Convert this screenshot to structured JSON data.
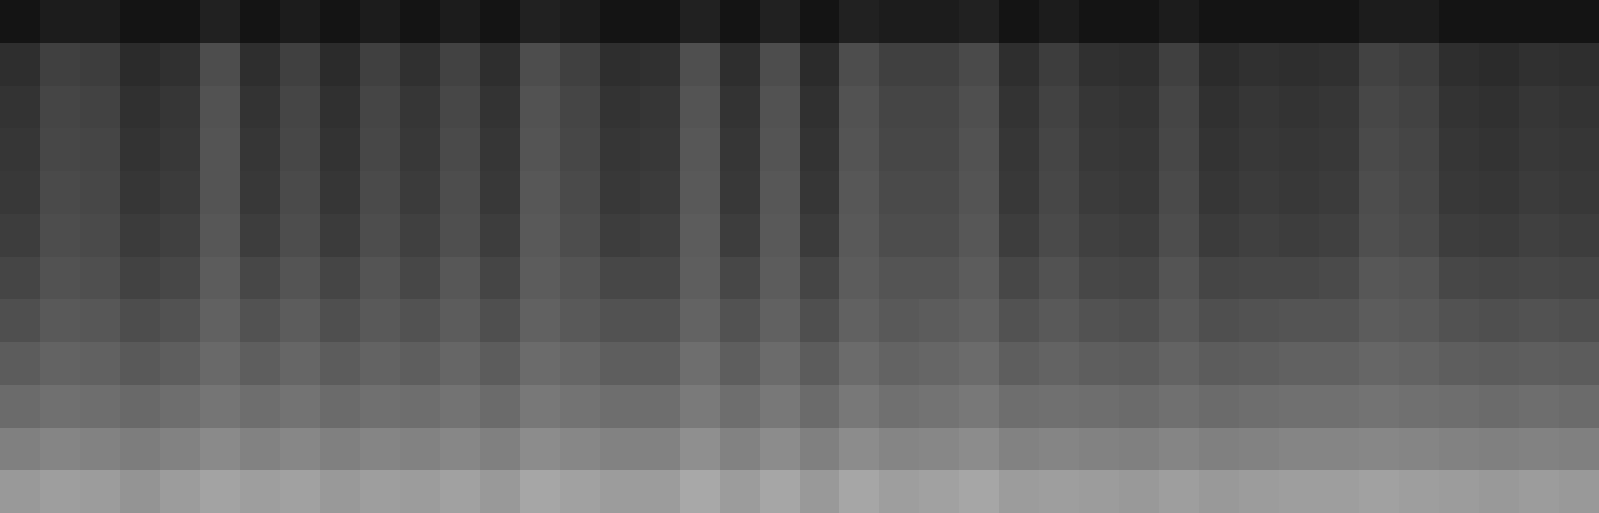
{
  "chart_data": {
    "type": "heatmap",
    "tick_labels": false,
    "zlim": [
      0,
      100
    ],
    "cells": [
      [
        8,
        11,
        11,
        8,
        8,
        13,
        8,
        11,
        8,
        11,
        8,
        11,
        8,
        13,
        11,
        8,
        8,
        13,
        8,
        13,
        8,
        13,
        11,
        11,
        13,
        8,
        11,
        8,
        8,
        11,
        8,
        8,
        8,
        8,
        11,
        11,
        8,
        8,
        8,
        8
      ],
      [
        18,
        25,
        24,
        17,
        19,
        30,
        18,
        25,
        17,
        25,
        19,
        26,
        18,
        30,
        25,
        18,
        19,
        31,
        18,
        30,
        17,
        30,
        25,
        25,
        29,
        18,
        24,
        19,
        18,
        25,
        17,
        19,
        18,
        19,
        26,
        24,
        18,
        17,
        19,
        18
      ],
      [
        20,
        27,
        26,
        19,
        21,
        32,
        20,
        27,
        19,
        27,
        21,
        28,
        20,
        32,
        27,
        20,
        21,
        33,
        20,
        32,
        19,
        32,
        27,
        27,
        31,
        20,
        26,
        21,
        20,
        27,
        19,
        21,
        20,
        21,
        28,
        26,
        20,
        19,
        21,
        20
      ],
      [
        21,
        28,
        27,
        20,
        22,
        33,
        21,
        28,
        20,
        28,
        22,
        29,
        21,
        33,
        28,
        21,
        22,
        34,
        21,
        33,
        20,
        33,
        28,
        28,
        32,
        21,
        27,
        22,
        21,
        28,
        20,
        22,
        21,
        22,
        29,
        27,
        21,
        20,
        22,
        21
      ],
      [
        22,
        29,
        28,
        21,
        23,
        33,
        22,
        29,
        21,
        29,
        23,
        30,
        22,
        34,
        29,
        22,
        23,
        35,
        22,
        34,
        21,
        34,
        29,
        29,
        33,
        22,
        28,
        23,
        22,
        29,
        21,
        23,
        22,
        23,
        30,
        28,
        22,
        21,
        23,
        22
      ],
      [
        24,
        30,
        29,
        23,
        25,
        34,
        24,
        30,
        23,
        30,
        25,
        31,
        24,
        35,
        30,
        24,
        25,
        36,
        24,
        35,
        23,
        35,
        30,
        30,
        34,
        24,
        29,
        25,
        24,
        30,
        23,
        25,
        24,
        25,
        31,
        29,
        24,
        23,
        25,
        24
      ],
      [
        27,
        32,
        31,
        26,
        28,
        36,
        28,
        33,
        27,
        33,
        28,
        34,
        27,
        36,
        33,
        28,
        28,
        37,
        28,
        36,
        27,
        36,
        33,
        33,
        36,
        28,
        32,
        28,
        27,
        33,
        27,
        28,
        28,
        29,
        34,
        33,
        28,
        27,
        28,
        27
      ],
      [
        31,
        35,
        34,
        30,
        32,
        38,
        32,
        36,
        31,
        35,
        32,
        36,
        31,
        38,
        35,
        32,
        32,
        39,
        32,
        38,
        31,
        38,
        35,
        36,
        38,
        32,
        35,
        32,
        31,
        35,
        31,
        32,
        33,
        33,
        36,
        35,
        32,
        31,
        32,
        31
      ],
      [
        36,
        39,
        38,
        35,
        37,
        41,
        37,
        40,
        36,
        39,
        37,
        40,
        36,
        42,
        40,
        37,
        37,
        43,
        37,
        42,
        36,
        42,
        39,
        40,
        42,
        37,
        39,
        37,
        36,
        39,
        36,
        37,
        38,
        38,
        40,
        39,
        37,
        36,
        37,
        36
      ],
      [
        42,
        44,
        43,
        41,
        43,
        46,
        43,
        45,
        42,
        44,
        43,
        45,
        42,
        47,
        45,
        43,
        43,
        48,
        43,
        47,
        42,
        47,
        44,
        45,
        47,
        43,
        44,
        43,
        42,
        44,
        42,
        43,
        44,
        44,
        45,
        44,
        43,
        42,
        43,
        42
      ],
      [
        50,
        52,
        51,
        49,
        51,
        54,
        51,
        53,
        50,
        52,
        51,
        53,
        50,
        55,
        53,
        51,
        51,
        56,
        51,
        55,
        50,
        55,
        52,
        53,
        55,
        51,
        52,
        51,
        50,
        52,
        50,
        51,
        52,
        52,
        53,
        52,
        51,
        50,
        51,
        50
      ],
      [
        60,
        62,
        61,
        58,
        61,
        64,
        62,
        63,
        60,
        62,
        61,
        63,
        60,
        65,
        63,
        61,
        61,
        66,
        61,
        65,
        60,
        65,
        62,
        63,
        65,
        61,
        62,
        61,
        60,
        62,
        60,
        61,
        62,
        62,
        63,
        62,
        61,
        60,
        61,
        60
      ]
    ]
  }
}
